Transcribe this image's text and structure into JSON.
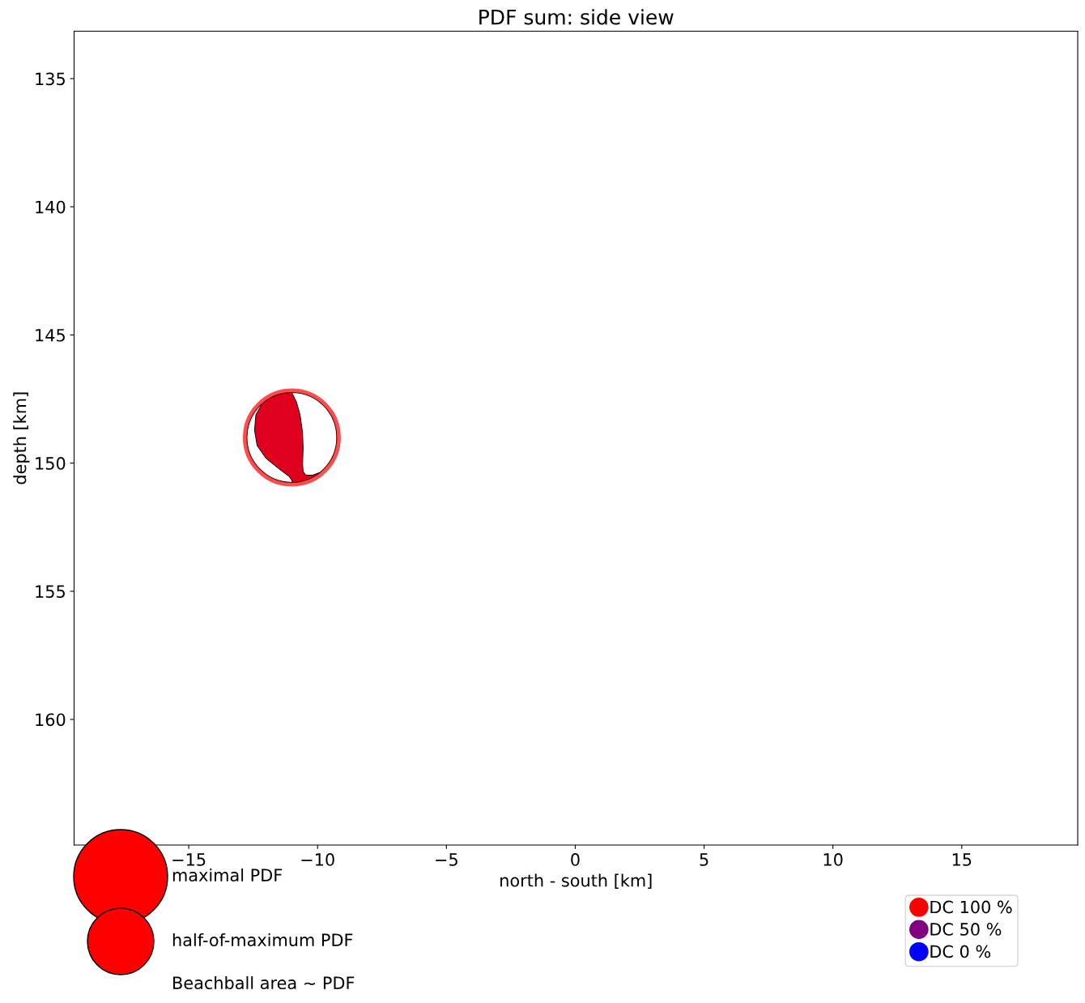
{
  "chart_data": {
    "type": "bubble",
    "title": "PDF sum: side view",
    "xlabel": "north - south [km]",
    "ylabel": "depth [km]",
    "xlim": [
      -19.45,
      19.5
    ],
    "xticks": [
      -15,
      -10,
      -5,
      0,
      5,
      10,
      15
    ],
    "ylim": [
      164.9,
      133.15
    ],
    "yticks": [
      135,
      140,
      145,
      150,
      155,
      160
    ],
    "series": [
      {
        "name": "DC 100 %",
        "color": "#ff0000",
        "x": [
          -11
        ],
        "values": [
          149
        ],
        "sizes": [
          1
        ]
      },
      {
        "name": "DC 50 %",
        "color": "#800080",
        "values": [
          null
        ]
      },
      {
        "name": "DC 0 %",
        "color": "#0000ff",
        "values": [
          null
        ]
      }
    ],
    "size_legend": [
      {
        "value": 1,
        "label": "maximal PDF"
      },
      {
        "value": 0.5,
        "label": "half-of-maximum PDF"
      }
    ],
    "annotations": [
      "Beachball area ~ PDF"
    ],
    "legend": "bottom right",
    "marker": "circle"
  }
}
